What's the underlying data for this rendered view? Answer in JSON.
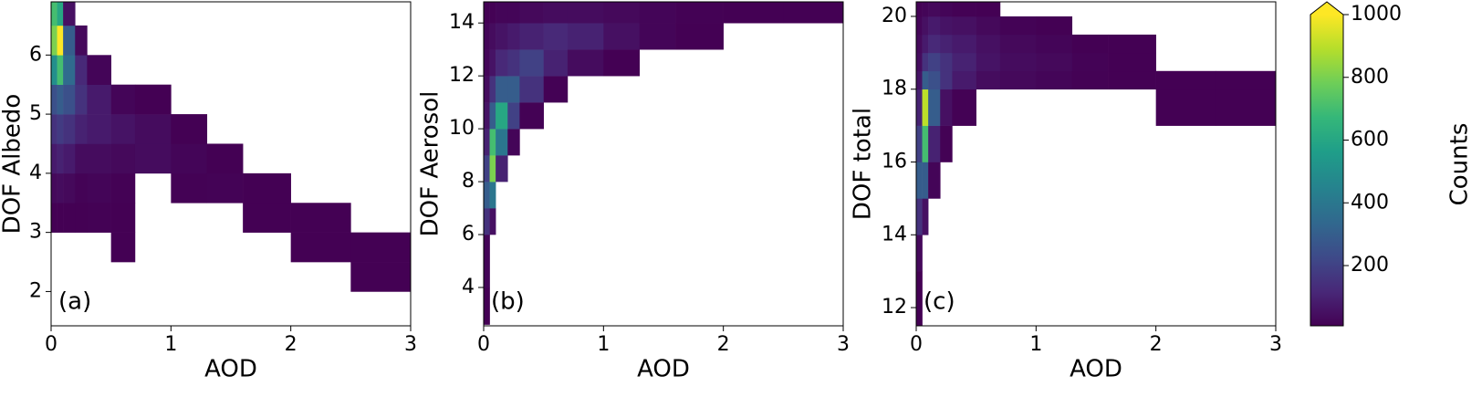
{
  "chart_data": [
    {
      "type": "histogram2d",
      "panel_label": "(a)",
      "x_label": "AOD",
      "y_label": "DOF Albedo",
      "xlim": [
        0,
        3
      ],
      "xticks": [
        0,
        1,
        2,
        3
      ],
      "ylim": [
        1.42,
        6.9
      ],
      "yticks": [
        2,
        3,
        4,
        5,
        6
      ],
      "x_edges": [
        0,
        0.05,
        0.1,
        0.2,
        0.3,
        0.5,
        0.7,
        1.0,
        1.3,
        1.6,
        2.0,
        2.5,
        3.0
      ],
      "y_edges": [
        2,
        2.5,
        3,
        3.5,
        4,
        4.5,
        5,
        5.5,
        6,
        6.5,
        6.9
      ],
      "counts": [
        [
          null,
          null,
          null,
          null,
          null,
          null,
          null,
          null,
          null,
          null,
          null,
          2
        ],
        [
          null,
          null,
          null,
          null,
          null,
          3,
          null,
          null,
          null,
          null,
          3,
          3
        ],
        [
          5,
          5,
          4,
          8,
          10,
          6,
          null,
          null,
          null,
          5,
          4,
          null
        ],
        [
          30,
          40,
          30,
          15,
          20,
          10,
          null,
          10,
          15,
          8,
          null,
          null
        ],
        [
          80,
          100,
          80,
          40,
          40,
          30,
          40,
          20,
          8,
          null,
          null,
          null
        ],
        [
          150,
          180,
          150,
          100,
          80,
          60,
          40,
          5,
          null,
          null,
          null,
          null
        ],
        [
          250,
          300,
          250,
          150,
          80,
          20,
          5,
          null,
          null,
          null,
          null,
          null
        ],
        [
          500,
          700,
          350,
          120,
          20,
          null,
          null,
          null,
          null,
          null,
          null,
          null
        ],
        [
          800,
          1000,
          300,
          30,
          null,
          null,
          null,
          null,
          null,
          null,
          null,
          null
        ],
        [
          700,
          600,
          50,
          null,
          null,
          null,
          null,
          null,
          null,
          null,
          null,
          null
        ]
      ]
    },
    {
      "type": "histogram2d",
      "panel_label": "(b)",
      "x_label": "AOD",
      "y_label": "DOF Aerosol",
      "xlim": [
        0,
        3
      ],
      "xticks": [
        0,
        1,
        2,
        3
      ],
      "ylim": [
        2.55,
        14.8
      ],
      "yticks": [
        4,
        6,
        8,
        10,
        12,
        14
      ],
      "x_edges": [
        0,
        0.05,
        0.1,
        0.2,
        0.3,
        0.5,
        0.7,
        1.0,
        1.3,
        1.6,
        2.0,
        2.5,
        3.0
      ],
      "y_edges": [
        2.6,
        4,
        6,
        7,
        8,
        9,
        10,
        11,
        12,
        13,
        14,
        14.8
      ],
      "counts": [
        [
          5,
          null,
          null,
          null,
          null,
          null,
          null,
          null,
          null,
          null,
          null,
          null
        ],
        [
          20,
          null,
          null,
          null,
          null,
          null,
          null,
          null,
          null,
          null,
          null,
          null
        ],
        [
          150,
          50,
          null,
          null,
          null,
          null,
          null,
          null,
          null,
          null,
          null,
          null
        ],
        [
          300,
          400,
          null,
          null,
          null,
          null,
          null,
          null,
          null,
          null,
          null,
          null
        ],
        [
          200,
          800,
          100,
          null,
          null,
          null,
          null,
          null,
          null,
          null,
          null,
          null
        ],
        [
          100,
          700,
          400,
          20,
          null,
          null,
          null,
          null,
          null,
          null,
          null,
          null
        ],
        [
          60,
          300,
          600,
          200,
          10,
          null,
          null,
          null,
          null,
          null,
          null,
          null
        ],
        [
          40,
          150,
          300,
          300,
          150,
          10,
          null,
          null,
          null,
          null,
          null,
          null
        ],
        [
          20,
          60,
          120,
          150,
          200,
          100,
          40,
          5,
          null,
          null,
          null,
          null
        ],
        [
          20,
          40,
          60,
          80,
          100,
          120,
          100,
          50,
          20,
          5,
          null,
          null
        ],
        [
          5,
          10,
          20,
          20,
          30,
          40,
          40,
          30,
          20,
          10,
          3,
          2
        ]
      ]
    },
    {
      "type": "histogram2d",
      "panel_label": "(c)",
      "x_label": "AOD",
      "y_label": "DOF total",
      "xlim": [
        0,
        3
      ],
      "xticks": [
        0,
        1,
        2,
        3
      ],
      "ylim": [
        11.5,
        20.4
      ],
      "yticks": [
        12,
        14,
        16,
        18,
        20
      ],
      "x_edges": [
        0,
        0.05,
        0.1,
        0.2,
        0.3,
        0.5,
        0.7,
        1.0,
        1.3,
        1.6,
        2.0,
        2.5,
        3.0
      ],
      "y_edges": [
        11.5,
        13,
        14,
        15,
        16,
        17,
        18,
        18.5,
        19,
        19.5,
        20,
        20.4
      ],
      "counts": [
        [
          5,
          null,
          null,
          null,
          null,
          null,
          null,
          null,
          null,
          null,
          null,
          null
        ],
        [
          30,
          null,
          null,
          null,
          null,
          null,
          null,
          null,
          null,
          null,
          null,
          null
        ],
        [
          150,
          50,
          null,
          null,
          null,
          null,
          null,
          null,
          null,
          null,
          null,
          null
        ],
        [
          300,
          300,
          20,
          null,
          null,
          null,
          null,
          null,
          null,
          null,
          null,
          null
        ],
        [
          200,
          700,
          100,
          10,
          null,
          null,
          null,
          null,
          null,
          null,
          null,
          null
        ],
        [
          100,
          900,
          300,
          50,
          10,
          null,
          null,
          null,
          null,
          null,
          2,
          2
        ],
        [
          60,
          300,
          250,
          150,
          80,
          40,
          30,
          20,
          10,
          5,
          3,
          2
        ],
        [
          40,
          150,
          200,
          150,
          100,
          60,
          40,
          30,
          15,
          5,
          null,
          null
        ],
        [
          30,
          80,
          120,
          100,
          80,
          50,
          30,
          20,
          5,
          2,
          null,
          null
        ],
        [
          20,
          50,
          80,
          60,
          50,
          30,
          15,
          5,
          null,
          null,
          null,
          null
        ],
        [
          10,
          20,
          30,
          20,
          10,
          3,
          null,
          null,
          null,
          null,
          null,
          null
        ]
      ]
    }
  ],
  "colorbar": {
    "label": "Counts",
    "colormap": "viridis",
    "extend": "max",
    "clim": [
      8,
      1000
    ],
    "ticks": [
      200,
      400,
      600,
      800,
      1000
    ]
  }
}
